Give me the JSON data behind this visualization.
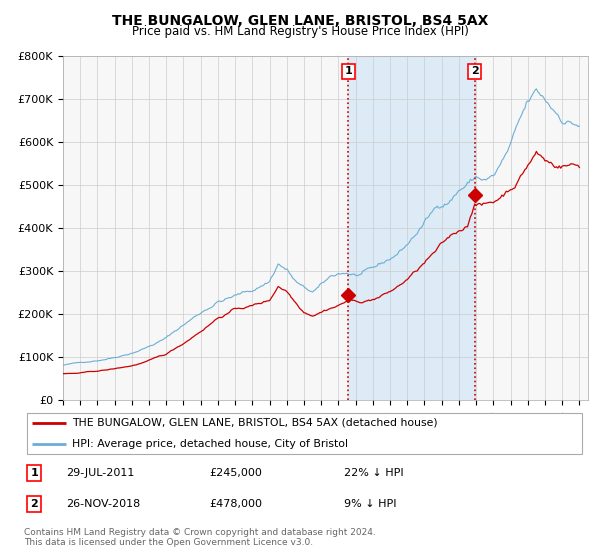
{
  "title": "THE BUNGALOW, GLEN LANE, BRISTOL, BS4 5AX",
  "subtitle": "Price paid vs. HM Land Registry's House Price Index (HPI)",
  "ylim": [
    0,
    800000
  ],
  "yticks": [
    0,
    100000,
    200000,
    300000,
    400000,
    500000,
    600000,
    700000,
    800000
  ],
  "ytick_labels": [
    "£0",
    "£100K",
    "£200K",
    "£300K",
    "£400K",
    "£500K",
    "£600K",
    "£700K",
    "£800K"
  ],
  "hpi_color": "#6baed6",
  "hpi_fill_color": "#d6e8f5",
  "price_color": "#cc0000",
  "marker_color": "#cc0000",
  "vline_color": "#cc0000",
  "bg_color": "#f7f7f7",
  "legend_label_price": "THE BUNGALOW, GLEN LANE, BRISTOL, BS4 5AX (detached house)",
  "legend_label_hpi": "HPI: Average price, detached house, City of Bristol",
  "annotation1_date": "29-JUL-2011",
  "annotation1_price": "£245,000",
  "annotation1_info": "22% ↓ HPI",
  "annotation2_date": "26-NOV-2018",
  "annotation2_price": "£478,000",
  "annotation2_info": "9% ↓ HPI",
  "footer": "Contains HM Land Registry data © Crown copyright and database right 2024.\nThis data is licensed under the Open Government Licence v3.0.",
  "sale1_x": 2011.58,
  "sale1_y": 245000,
  "sale2_x": 2018.92,
  "sale2_y": 478000,
  "xlim_start": 1995.0,
  "xlim_end": 2025.5,
  "xticks": [
    1995,
    1996,
    1997,
    1998,
    1999,
    2000,
    2001,
    2002,
    2003,
    2004,
    2005,
    2006,
    2007,
    2008,
    2009,
    2010,
    2011,
    2012,
    2013,
    2014,
    2015,
    2016,
    2017,
    2018,
    2019,
    2020,
    2021,
    2022,
    2023,
    2024,
    2025
  ]
}
